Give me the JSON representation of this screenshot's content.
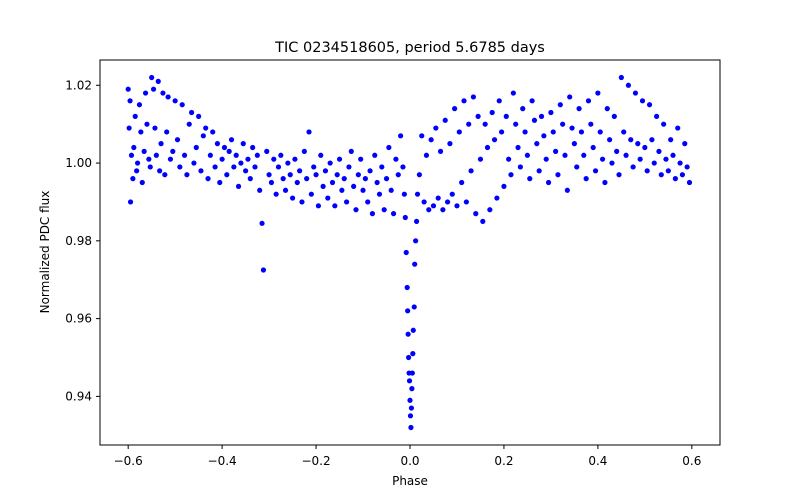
{
  "chart_data": {
    "type": "scatter",
    "title": "TIC 0234518605, period 5.6785 days",
    "xlabel": "Phase",
    "ylabel": "Normalized PDC flux",
    "xlim": [
      -0.66,
      0.66
    ],
    "ylim": [
      0.9275,
      1.0265
    ],
    "xticks": [
      -0.6,
      -0.4,
      -0.2,
      0.0,
      0.2,
      0.4,
      0.6
    ],
    "xtick_labels": [
      "−0.6",
      "−0.4",
      "−0.2",
      "0.0",
      "0.2",
      "0.4",
      "0.6"
    ],
    "yticks": [
      0.94,
      0.96,
      0.98,
      1.0,
      1.02
    ],
    "ytick_labels": [
      "0.94",
      "0.96",
      "0.98",
      "1.00",
      "1.02"
    ],
    "grid": false,
    "marker_color": "#0000ff",
    "series": [
      {
        "name": "PDC flux",
        "points": [
          [
            -0.6,
            1.019
          ],
          [
            -0.598,
            1.009
          ],
          [
            -0.596,
            1.016
          ],
          [
            -0.595,
            0.99
          ],
          [
            -0.593,
            1.002
          ],
          [
            -0.59,
            0.996
          ],
          [
            -0.588,
            1.004
          ],
          [
            -0.585,
            1.012
          ],
          [
            -0.582,
            0.998
          ],
          [
            -0.58,
            1.0
          ],
          [
            -0.576,
            1.015
          ],
          [
            -0.573,
            1.008
          ],
          [
            -0.57,
            0.995
          ],
          [
            -0.566,
            1.003
          ],
          [
            -0.563,
            1.018
          ],
          [
            -0.56,
            1.01
          ],
          [
            -0.556,
            1.001
          ],
          [
            -0.553,
            0.999
          ],
          [
            -0.55,
            1.022
          ],
          [
            -0.546,
            1.019
          ],
          [
            -0.543,
            1.009
          ],
          [
            -0.54,
            1.002
          ],
          [
            -0.536,
            1.021
          ],
          [
            -0.533,
            0.998
          ],
          [
            -0.53,
            1.005
          ],
          [
            -0.526,
            1.018
          ],
          [
            -0.522,
            0.997
          ],
          [
            -0.518,
            1.008
          ],
          [
            -0.515,
            1.017
          ],
          [
            -0.51,
            1.001
          ],
          [
            -0.505,
            1.003
          ],
          [
            -0.5,
            1.016
          ],
          [
            -0.495,
            1.006
          ],
          [
            -0.49,
            0.999
          ],
          [
            -0.485,
            1.015
          ],
          [
            -0.48,
            1.002
          ],
          [
            -0.475,
            0.997
          ],
          [
            -0.47,
            1.01
          ],
          [
            -0.465,
            1.013
          ],
          [
            -0.46,
            1.0
          ],
          [
            -0.455,
            1.004
          ],
          [
            -0.45,
            1.012
          ],
          [
            -0.445,
            0.998
          ],
          [
            -0.44,
            1.007
          ],
          [
            -0.435,
            1.009
          ],
          [
            -0.43,
            0.996
          ],
          [
            -0.425,
            1.002
          ],
          [
            -0.42,
            1.008
          ],
          [
            -0.415,
            0.999
          ],
          [
            -0.41,
            1.005
          ],
          [
            -0.405,
            0.995
          ],
          [
            -0.4,
            1.001
          ],
          [
            -0.395,
            1.004
          ],
          [
            -0.39,
            0.997
          ],
          [
            -0.385,
            1.003
          ],
          [
            -0.38,
            1.006
          ],
          [
            -0.375,
            0.999
          ],
          [
            -0.37,
            1.002
          ],
          [
            -0.365,
            0.994
          ],
          [
            -0.36,
            1.0
          ],
          [
            -0.355,
            1.005
          ],
          [
            -0.35,
            0.998
          ],
          [
            -0.345,
            1.001
          ],
          [
            -0.34,
            0.996
          ],
          [
            -0.335,
            1.004
          ],
          [
            -0.33,
            0.999
          ],
          [
            -0.325,
            1.002
          ],
          [
            -0.32,
            0.993
          ],
          [
            -0.315,
            0.9845
          ],
          [
            -0.312,
            0.9725
          ],
          [
            -0.305,
            1.003
          ],
          [
            -0.3,
            0.997
          ],
          [
            -0.295,
            0.995
          ],
          [
            -0.29,
            1.001
          ],
          [
            -0.285,
            0.992
          ],
          [
            -0.28,
            0.999
          ],
          [
            -0.275,
            1.002
          ],
          [
            -0.27,
            0.996
          ],
          [
            -0.265,
            0.993
          ],
          [
            -0.26,
            1.0
          ],
          [
            -0.255,
            0.997
          ],
          [
            -0.25,
            0.991
          ],
          [
            -0.245,
            1.001
          ],
          [
            -0.24,
            0.995
          ],
          [
            -0.235,
            0.998
          ],
          [
            -0.23,
            0.99
          ],
          [
            -0.225,
            1.003
          ],
          [
            -0.22,
            0.996
          ],
          [
            -0.215,
            1.008
          ],
          [
            -0.21,
            0.992
          ],
          [
            -0.205,
            0.999
          ],
          [
            -0.2,
            0.997
          ],
          [
            -0.195,
            0.989
          ],
          [
            -0.19,
            1.002
          ],
          [
            -0.185,
            0.994
          ],
          [
            -0.18,
            0.998
          ],
          [
            -0.175,
            0.991
          ],
          [
            -0.17,
            1.0
          ],
          [
            -0.165,
            0.995
          ],
          [
            -0.16,
            0.989
          ],
          [
            -0.155,
            0.997
          ],
          [
            -0.15,
            1.001
          ],
          [
            -0.145,
            0.993
          ],
          [
            -0.14,
            0.996
          ],
          [
            -0.135,
            0.99
          ],
          [
            -0.13,
            0.999
          ],
          [
            -0.125,
            1.003
          ],
          [
            -0.12,
            0.994
          ],
          [
            -0.115,
            0.988
          ],
          [
            -0.11,
            0.997
          ],
          [
            -0.105,
            1.001
          ],
          [
            -0.1,
            0.993
          ],
          [
            -0.095,
            0.996
          ],
          [
            -0.09,
            0.99
          ],
          [
            -0.085,
            0.998
          ],
          [
            -0.08,
            0.987
          ],
          [
            -0.075,
            1.002
          ],
          [
            -0.07,
            0.995
          ],
          [
            -0.065,
            0.992
          ],
          [
            -0.06,
            0.999
          ],
          [
            -0.055,
            0.988
          ],
          [
            -0.05,
            0.996
          ],
          [
            -0.045,
            1.004
          ],
          [
            -0.04,
            0.993
          ],
          [
            -0.035,
            0.987
          ],
          [
            -0.03,
            1.001
          ],
          [
            -0.025,
            0.997
          ],
          [
            -0.02,
            1.007
          ],
          [
            -0.015,
            0.999
          ],
          [
            -0.012,
            0.992
          ],
          [
            -0.01,
            0.986
          ],
          [
            -0.008,
            0.977
          ],
          [
            -0.006,
            0.968
          ],
          [
            -0.005,
            0.962
          ],
          [
            -0.004,
            0.956
          ],
          [
            -0.003,
            0.95
          ],
          [
            -0.002,
            0.946
          ],
          [
            -0.001,
            0.944
          ],
          [
            0.0,
            0.939
          ],
          [
            0.001,
            0.935
          ],
          [
            0.002,
            0.932
          ],
          [
            0.003,
            0.937
          ],
          [
            0.004,
            0.942
          ],
          [
            0.005,
            0.946
          ],
          [
            0.006,
            0.951
          ],
          [
            0.007,
            0.957
          ],
          [
            0.009,
            0.963
          ],
          [
            0.01,
            0.974
          ],
          [
            0.012,
            0.98
          ],
          [
            0.014,
            0.985
          ],
          [
            0.016,
            0.992
          ],
          [
            0.02,
            0.997
          ],
          [
            0.025,
            1.007
          ],
          [
            0.03,
            0.99
          ],
          [
            0.035,
            1.002
          ],
          [
            0.04,
            0.988
          ],
          [
            0.045,
            1.006
          ],
          [
            0.05,
            0.989
          ],
          [
            0.055,
            1.009
          ],
          [
            0.06,
            0.991
          ],
          [
            0.065,
            1.003
          ],
          [
            0.07,
            0.988
          ],
          [
            0.075,
            1.011
          ],
          [
            0.08,
            0.99
          ],
          [
            0.085,
            1.005
          ],
          [
            0.09,
            0.992
          ],
          [
            0.095,
            1.014
          ],
          [
            0.1,
            0.989
          ],
          [
            0.105,
            1.008
          ],
          [
            0.11,
            0.995
          ],
          [
            0.115,
            1.016
          ],
          [
            0.12,
            0.99
          ],
          [
            0.125,
            1.01
          ],
          [
            0.13,
            0.998
          ],
          [
            0.135,
            1.017
          ],
          [
            0.14,
            0.987
          ],
          [
            0.145,
            1.012
          ],
          [
            0.15,
            1.001
          ],
          [
            0.155,
            0.985
          ],
          [
            0.16,
            1.01
          ],
          [
            0.165,
            1.004
          ],
          [
            0.17,
            0.988
          ],
          [
            0.175,
            1.013
          ],
          [
            0.18,
            1.006
          ],
          [
            0.185,
            0.991
          ],
          [
            0.19,
            1.016
          ],
          [
            0.195,
            1.008
          ],
          [
            0.2,
            0.994
          ],
          [
            0.205,
            1.012
          ],
          [
            0.21,
            1.001
          ],
          [
            0.215,
            0.997
          ],
          [
            0.22,
            1.018
          ],
          [
            0.225,
            1.01
          ],
          [
            0.23,
            1.004
          ],
          [
            0.235,
            0.999
          ],
          [
            0.24,
            1.014
          ],
          [
            0.245,
            1.008
          ],
          [
            0.25,
            1.002
          ],
          [
            0.255,
            0.996
          ],
          [
            0.26,
            1.016
          ],
          [
            0.265,
            1.011
          ],
          [
            0.27,
            1.005
          ],
          [
            0.275,
            0.998
          ],
          [
            0.28,
            1.012
          ],
          [
            0.285,
            1.007
          ],
          [
            0.29,
            1.001
          ],
          [
            0.295,
            0.995
          ],
          [
            0.3,
            1.013
          ],
          [
            0.305,
            1.008
          ],
          [
            0.31,
            1.003
          ],
          [
            0.315,
            0.997
          ],
          [
            0.32,
            1.015
          ],
          [
            0.325,
            1.01
          ],
          [
            0.33,
            1.002
          ],
          [
            0.335,
            0.993
          ],
          [
            0.34,
            1.017
          ],
          [
            0.345,
            1.009
          ],
          [
            0.35,
            1.005
          ],
          [
            0.355,
            0.999
          ],
          [
            0.36,
            1.014
          ],
          [
            0.365,
            1.008
          ],
          [
            0.37,
            1.002
          ],
          [
            0.375,
            0.996
          ],
          [
            0.38,
            1.016
          ],
          [
            0.385,
            1.01
          ],
          [
            0.39,
            1.004
          ],
          [
            0.395,
            0.998
          ],
          [
            0.4,
            1.018
          ],
          [
            0.405,
            1.008
          ],
          [
            0.41,
            1.001
          ],
          [
            0.415,
            0.995
          ],
          [
            0.42,
            1.014
          ],
          [
            0.425,
            1.006
          ],
          [
            0.43,
            1.0
          ],
          [
            0.435,
            1.012
          ],
          [
            0.44,
            1.003
          ],
          [
            0.445,
            0.997
          ],
          [
            0.45,
            1.022
          ],
          [
            0.455,
            1.008
          ],
          [
            0.46,
            1.002
          ],
          [
            0.465,
            1.02
          ],
          [
            0.47,
            1.006
          ],
          [
            0.475,
            0.999
          ],
          [
            0.48,
            1.018
          ],
          [
            0.485,
            1.005
          ],
          [
            0.49,
            1.001
          ],
          [
            0.495,
            1.016
          ],
          [
            0.5,
            1.004
          ],
          [
            0.505,
            0.998
          ],
          [
            0.51,
            1.015
          ],
          [
            0.515,
            1.006
          ],
          [
            0.52,
            1.0
          ],
          [
            0.525,
            1.012
          ],
          [
            0.53,
            1.003
          ],
          [
            0.535,
            0.997
          ],
          [
            0.54,
            1.01
          ],
          [
            0.545,
            1.001
          ],
          [
            0.55,
            0.998
          ],
          [
            0.555,
            1.006
          ],
          [
            0.56,
            1.002
          ],
          [
            0.565,
            0.996
          ],
          [
            0.57,
            1.009
          ],
          [
            0.575,
            1.0
          ],
          [
            0.58,
            0.997
          ],
          [
            0.585,
            1.005
          ],
          [
            0.59,
            0.999
          ],
          [
            0.595,
            0.995
          ]
        ]
      }
    ]
  }
}
